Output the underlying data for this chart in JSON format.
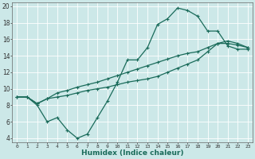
{
  "xlabel": "Humidex (Indice chaleur)",
  "bg_color": "#cce8e8",
  "grid_color": "#ffffff",
  "line_color": "#1a6b5a",
  "xlim": [
    -0.5,
    23.5
  ],
  "ylim": [
    3.5,
    20.5
  ],
  "xticks": [
    0,
    1,
    2,
    3,
    4,
    5,
    6,
    7,
    8,
    9,
    10,
    11,
    12,
    13,
    14,
    15,
    16,
    17,
    18,
    19,
    20,
    21,
    22,
    23
  ],
  "yticks": [
    4,
    6,
    8,
    10,
    12,
    14,
    16,
    18,
    20
  ],
  "line1_x": [
    0,
    1,
    2,
    3,
    4,
    5,
    6,
    7,
    8,
    9,
    10,
    11,
    12,
    13,
    14,
    15,
    16,
    17,
    18,
    19,
    20,
    21,
    22,
    23
  ],
  "line1_y": [
    9.0,
    9.0,
    8.0,
    6.0,
    6.5,
    5.0,
    4.0,
    4.5,
    6.5,
    8.5,
    10.8,
    13.5,
    13.5,
    15.0,
    17.8,
    18.5,
    19.8,
    19.5,
    18.8,
    17.0,
    17.0,
    15.2,
    14.8,
    14.8
  ],
  "line2_x": [
    0,
    1,
    2,
    3,
    4,
    5,
    6,
    7,
    8,
    9,
    10,
    11,
    12,
    13,
    14,
    15,
    16,
    17,
    18,
    19,
    20,
    21,
    22,
    23
  ],
  "line2_y": [
    9.0,
    9.0,
    8.2,
    8.8,
    9.5,
    9.8,
    10.2,
    10.5,
    10.8,
    11.2,
    11.6,
    12.0,
    12.4,
    12.8,
    13.2,
    13.6,
    14.0,
    14.3,
    14.5,
    15.0,
    15.5,
    15.5,
    15.3,
    15.0
  ],
  "line3_x": [
    0,
    1,
    2,
    3,
    4,
    5,
    6,
    7,
    8,
    9,
    10,
    11,
    12,
    13,
    14,
    15,
    16,
    17,
    18,
    19,
    20,
    21,
    22,
    23
  ],
  "line3_y": [
    9.0,
    9.0,
    8.2,
    8.8,
    9.0,
    9.2,
    9.5,
    9.8,
    10.0,
    10.2,
    10.5,
    10.8,
    11.0,
    11.2,
    11.5,
    12.0,
    12.5,
    13.0,
    13.5,
    14.5,
    15.5,
    15.8,
    15.5,
    15.0
  ]
}
